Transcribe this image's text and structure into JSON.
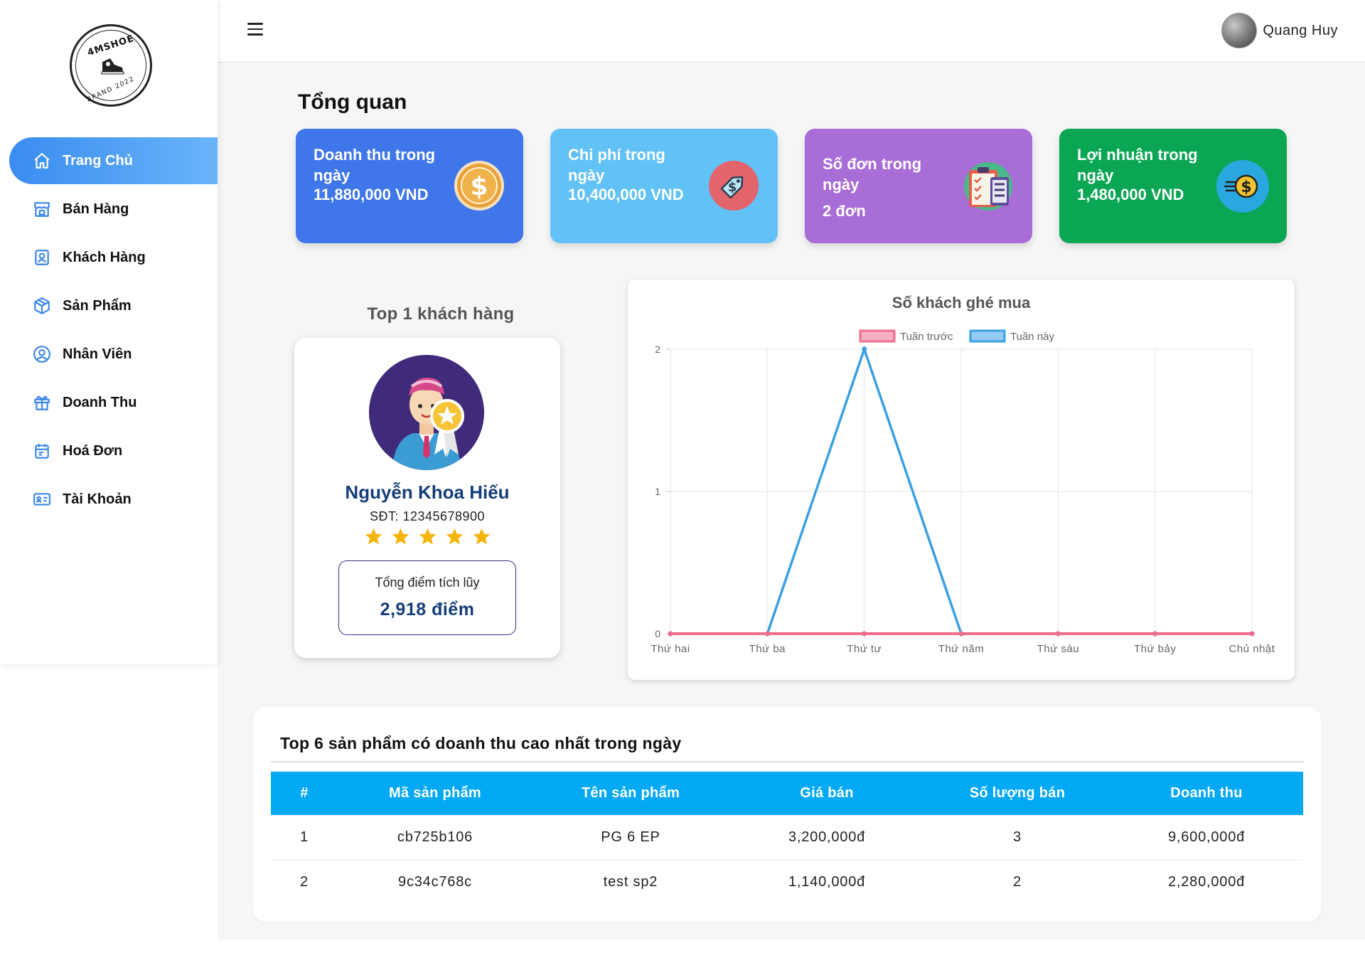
{
  "brand": {
    "top_text": "4MSHOE",
    "bottom_text": "BRAND 2022"
  },
  "sidebar": {
    "items": [
      {
        "label": "Trang Chủ",
        "icon": "home-icon",
        "active": true
      },
      {
        "label": "Bán Hàng",
        "icon": "store-icon"
      },
      {
        "label": "Khách Hàng",
        "icon": "contact-icon"
      },
      {
        "label": "Sản Phẩm",
        "icon": "box-icon"
      },
      {
        "label": "Nhân Viên",
        "icon": "user-circle-icon"
      },
      {
        "label": "Doanh Thu",
        "icon": "gift-icon"
      },
      {
        "label": "Hoá Đơn",
        "icon": "calendar-icon"
      },
      {
        "label": "Tài Khoản",
        "icon": "id-card-icon"
      }
    ]
  },
  "header": {
    "user_name": "Quang Huy"
  },
  "page_title": "Tổng quan",
  "stats": [
    {
      "label": "Doanh thu trong ngày",
      "value": "11,880,000 VND",
      "color": "#3f76ea",
      "icon": "dollar-coin-icon"
    },
    {
      "label": "Chi phí trong ngày",
      "value": "10,400,000 VND",
      "color": "#62c2f6",
      "icon": "price-tag-icon"
    },
    {
      "label": "Số đơn trong ngày",
      "value": "2 đơn",
      "color": "#a86dd6",
      "icon": "clipboard-icon"
    },
    {
      "label": "Lợi nhuận trong ngày",
      "value": "1,480,000 VND",
      "color": "#0aa654",
      "icon": "money-flow-icon"
    }
  ],
  "top_customer": {
    "title": "Top 1 khách hàng",
    "name": "Nguyễn Khoa Hiếu",
    "phone": "SĐT: 12345678900",
    "rating": 5,
    "points_label": "Tổng điểm tích lũy",
    "points_value": "2,918 điểm"
  },
  "chart_data": {
    "type": "line",
    "title": "Số khách ghé mua",
    "categories": [
      "Thứ hai",
      "Thứ ba",
      "Thứ tư",
      "Thứ năm",
      "Thứ sáu",
      "Thứ bảy",
      "Chủ nhật"
    ],
    "series": [
      {
        "name": "Tuần trước",
        "values": [
          0,
          0,
          0,
          0,
          0,
          0,
          0
        ],
        "color": "#ec6d8f"
      },
      {
        "name": "Tuần này",
        "values": [
          0,
          0,
          2,
          0,
          0,
          0,
          0
        ],
        "color": "#39a0e3"
      }
    ],
    "ylim": [
      0,
      2
    ],
    "yticks": [
      0,
      1,
      2
    ],
    "grid": true,
    "legend": "top"
  },
  "top_products": {
    "title": "Top 6 sản phẩm có doanh thu cao nhất trong ngày",
    "columns": [
      "#",
      "Mã sản phẩm",
      "Tên sản phẩm",
      "Giá bán",
      "Số lượng bán",
      "Doanh thu"
    ],
    "rows": [
      [
        "1",
        "cb725b106",
        "PG 6 EP",
        "3,200,000đ",
        "3",
        "9,600,000đ"
      ],
      [
        "2",
        "9c34c768c",
        "test sp2",
        "1,140,000đ",
        "2",
        "2,280,000đ"
      ]
    ]
  }
}
